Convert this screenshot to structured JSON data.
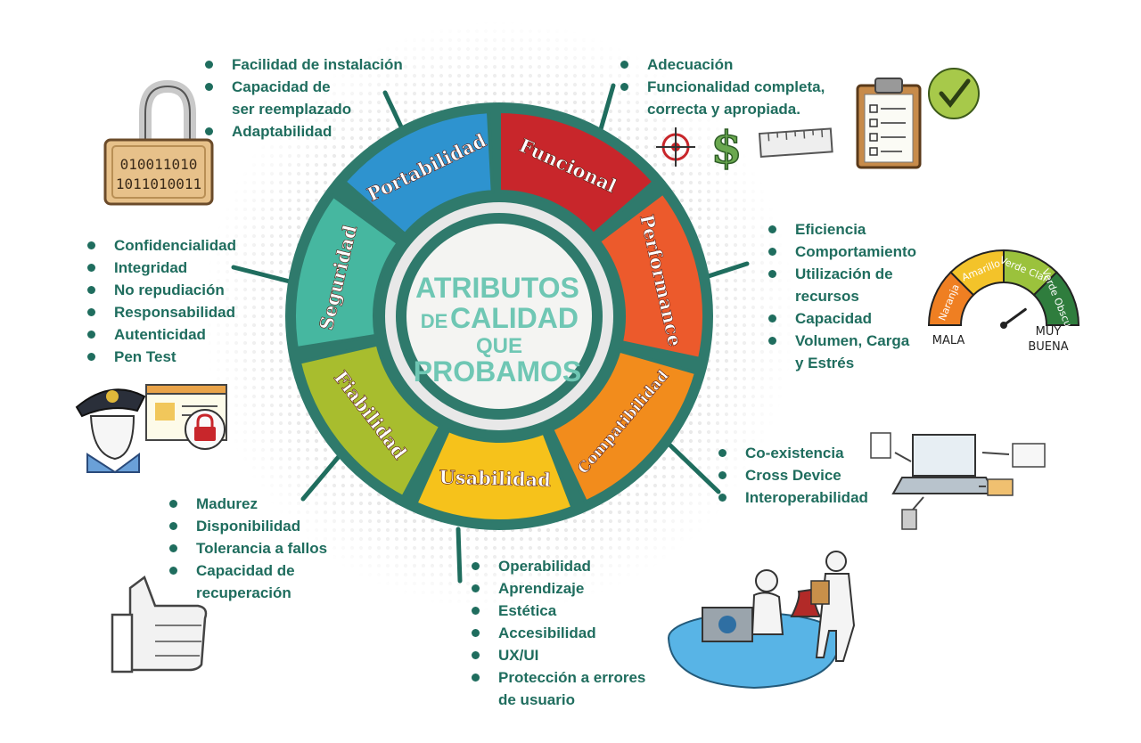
{
  "center": {
    "line1": "ATRIBUTOS",
    "line2a": "DE",
    "line2b": "CALIDAD",
    "line3": "QUE",
    "line4": "PROBAMOS"
  },
  "segments": [
    {
      "label": "Funcional",
      "color": "#c8262b"
    },
    {
      "label": "Performance",
      "color": "#ec5a2c"
    },
    {
      "label": "Compatibilidad",
      "color": "#f28c1c"
    },
    {
      "label": "Usabilidad",
      "color": "#f6c21b"
    },
    {
      "label": "Fiabilidad",
      "color": "#a8bd2e"
    },
    {
      "label": "Seguridad",
      "color": "#46b7a0"
    },
    {
      "label": "Portabilidad",
      "color": "#2e93cf"
    }
  ],
  "lists": {
    "portabilidad": [
      "Facilidad de instalación",
      "Capacidad de",
      "ser reemplazado",
      "Adaptabilidad"
    ],
    "funcional": [
      "Adecuación",
      "Funcionalidad completa,",
      "correcta y apropiada."
    ],
    "performance": [
      "Eficiencia",
      "Comportamiento",
      "Utilización de",
      "recursos",
      "Capacidad",
      "Volumen, Carga",
      "y Estrés"
    ],
    "seguridad": [
      "Confidencialidad",
      "Integridad",
      "No repudiación",
      "Responsabilidad",
      "Autenticidad",
      "Pen Test"
    ],
    "compatibilidad": [
      "Co-existencia",
      "Cross Device",
      "Interoperabilidad"
    ],
    "fiabilidad": [
      "Madurez",
      "Disponibilidad",
      "Tolerancia a fallos",
      "Capacidad de",
      "recuperación"
    ],
    "usabilidad": [
      "Operabilidad",
      "Aprendizaje",
      "Estética",
      "Accesibilidad",
      "UX/UI",
      "Protección a errores",
      "de usuario"
    ]
  },
  "gauge": {
    "bands": [
      "Naranja",
      "Amarillo",
      "Verde Claro",
      "Verde Obscuro"
    ],
    "band_colors": [
      "#ef7f22",
      "#f3c32a",
      "#9bc23c",
      "#2f7d3d"
    ],
    "low_label": "MALA",
    "high_label_1": "MUY",
    "high_label_2": "BUENA",
    "level": 0.8
  },
  "illustrations": {
    "lock_bits_1": "010011010",
    "lock_bits_2": "1011010011",
    "currency": "$"
  },
  "icons": [
    "padlock-icon",
    "clipboard-icon",
    "checkmark-icon",
    "target-icon",
    "dollar-icon",
    "ruler-icon",
    "gauge-icon",
    "police-icon",
    "laptop-icon",
    "thumbs-up-icon",
    "person-desk-icon"
  ]
}
